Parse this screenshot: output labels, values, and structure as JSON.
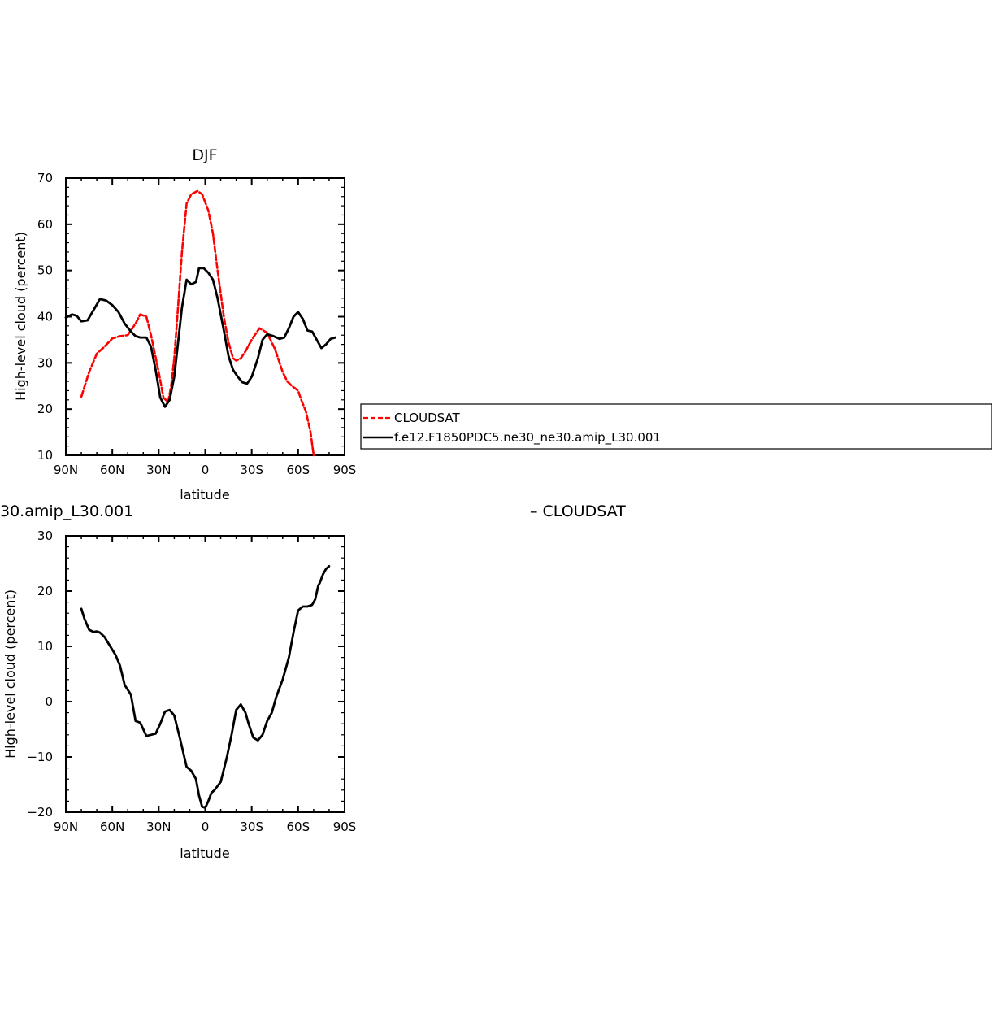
{
  "chart_data": [
    {
      "type": "line",
      "title": "DJF",
      "xlabel": "latitude",
      "ylabel": "High-level cloud (percent)",
      "xlim": [
        90,
        -90
      ],
      "ylim": [
        10,
        70
      ],
      "x_tick_labels": [
        "90N",
        "60N",
        "30N",
        "0",
        "30S",
        "60S",
        "90S"
      ],
      "x_tick_values": [
        90,
        60,
        30,
        0,
        -30,
        -60,
        -90
      ],
      "y_tick_values": [
        10,
        20,
        30,
        40,
        50,
        60,
        70
      ],
      "series": [
        {
          "name": "CLOUDSAT",
          "color": "#ff0000",
          "dash": "dashed",
          "x": [
            80,
            75,
            70,
            65,
            60,
            55,
            50,
            45,
            42,
            38,
            35,
            30,
            27,
            24,
            22,
            20,
            18,
            15,
            12,
            9,
            5,
            2,
            -2,
            -5,
            -8,
            -12,
            -15,
            -18,
            -20,
            -23,
            -26,
            -30,
            -35,
            -40,
            -45,
            -48,
            -50,
            -53,
            -56,
            -58,
            -60,
            -62,
            -65,
            -68,
            -70,
            -73,
            -76,
            -78,
            -80
          ],
          "y": [
            22.7,
            28,
            32,
            33.5,
            35.3,
            35.8,
            36,
            38.5,
            40.5,
            40,
            36,
            28,
            22.5,
            21.5,
            25,
            31,
            40,
            54,
            64.5,
            66.5,
            67.2,
            66.5,
            63,
            58,
            50,
            40,
            34.5,
            31,
            30.5,
            31,
            32.5,
            35,
            37.5,
            36.5,
            33,
            30,
            28,
            26,
            25,
            24.5,
            24,
            22,
            19.5,
            15,
            10,
            null,
            null,
            null,
            null
          ]
        },
        {
          "name": "f.e12.F1850PDC5.ne30_ne30.amip_L30.001",
          "color": "#000000",
          "dash": "solid",
          "x": [
            90,
            86,
            83,
            80,
            76,
            72,
            68,
            64,
            60,
            56,
            52,
            48,
            45,
            42,
            38,
            35,
            32,
            29,
            26,
            23,
            20,
            18,
            15,
            12,
            9,
            6,
            4,
            1,
            -2,
            -5,
            -8,
            -12,
            -15,
            -18,
            -21,
            -24,
            -27,
            -30,
            -34,
            -37,
            -40,
            -44,
            -48,
            -51,
            -54,
            -57,
            -60,
            -63,
            -66,
            -69,
            -72,
            -75,
            -78,
            -81,
            -84,
            -87,
            -90
          ],
          "y": [
            39.8,
            40.5,
            40.2,
            39,
            39.2,
            41.5,
            43.8,
            43.5,
            42.5,
            41,
            38.5,
            36.8,
            35.8,
            35.5,
            35.5,
            33.5,
            28.5,
            22.5,
            20.5,
            22,
            27,
            33,
            42,
            48,
            47,
            47.5,
            50.5,
            50.5,
            49.5,
            48,
            44,
            37,
            31.5,
            28.5,
            27,
            25.8,
            25.5,
            27,
            31,
            35,
            36.2,
            35.8,
            35.2,
            35.5,
            37.5,
            40,
            41,
            39.5,
            37,
            36.8,
            35,
            33.2,
            34,
            35.2,
            35.5,
            null,
            null
          ]
        }
      ],
      "legend": [
        "CLOUDSAT",
        "f.e12.F1850PDC5.ne30_ne30.amip_L30.001"
      ],
      "legend_placement": "right of panel, boxed"
    },
    {
      "type": "line",
      "title": "30.amip_L30.001",
      "title_right": "– CLOUDSAT",
      "xlabel": "latitude",
      "ylabel": "High-level cloud (percent)",
      "xlim": [
        90,
        -90
      ],
      "ylim": [
        -20,
        30
      ],
      "x_tick_labels": [
        "90N",
        "60N",
        "30N",
        "0",
        "30S",
        "60S",
        "90S"
      ],
      "x_tick_values": [
        90,
        60,
        30,
        0,
        -30,
        -60,
        -90
      ],
      "y_tick_values": [
        -20,
        -10,
        0,
        10,
        20,
        30
      ],
      "series": [
        {
          "name": "",
          "color": "#000000",
          "dash": "solid",
          "x": [
            80,
            78,
            75,
            72,
            70,
            68,
            65,
            62,
            58,
            55,
            52,
            48,
            45,
            42,
            38,
            35,
            32,
            29,
            26,
            23,
            20,
            16,
            12,
            9,
            6,
            4,
            2,
            0,
            -2,
            -4,
            -6,
            -10,
            -14,
            -17,
            -20,
            -23,
            -26,
            -28,
            -31,
            -34,
            -37,
            -40,
            -43,
            -46,
            -50,
            -54,
            -57,
            -60,
            -63,
            -66,
            -69,
            -71,
            -73,
            -74,
            -76,
            -78,
            -80
          ],
          "y": [
            16.8,
            15,
            13,
            12.6,
            12.7,
            12.5,
            11.7,
            10.3,
            8.5,
            6.5,
            3,
            1.3,
            -3.5,
            -3.8,
            -6.2,
            -6,
            -5.8,
            -4,
            -1.8,
            -1.5,
            -2.5,
            -7,
            -11.8,
            -12.5,
            -14,
            -17,
            -19,
            -19.2,
            -18,
            -16.5,
            -16,
            -14.5,
            -10,
            -6,
            -1.5,
            -0.5,
            -2,
            -4,
            -6.5,
            -7,
            -6,
            -3.5,
            -2,
            1,
            4,
            8,
            12.5,
            16.5,
            17.2,
            17.2,
            17.5,
            18.5,
            21,
            21.5,
            23,
            24,
            24.5
          ]
        }
      ]
    }
  ]
}
